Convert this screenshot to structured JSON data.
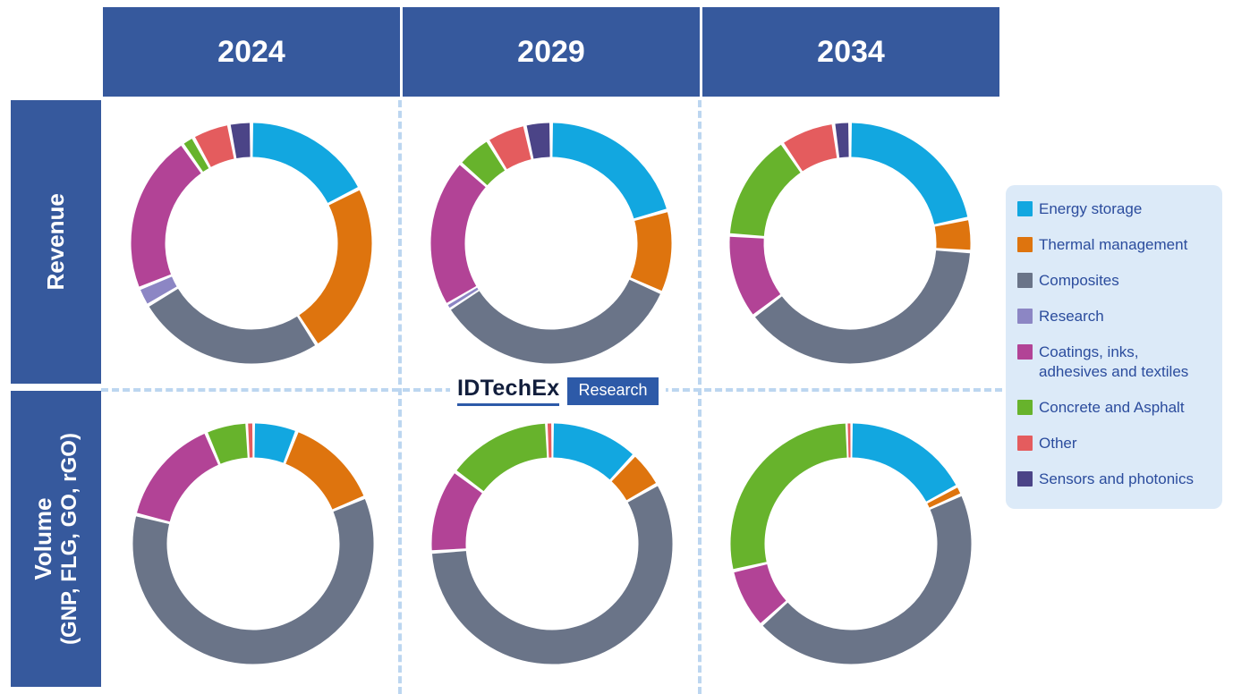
{
  "header": {
    "columns": [
      "2024",
      "2029",
      "2034"
    ]
  },
  "rows": [
    {
      "label": "Revenue"
    },
    {
      "label_line1": "Volume",
      "label_line2": "(GNP, FLG, GO, rGO)"
    }
  ],
  "logo": {
    "brand": "IDTechEx",
    "badge": "Research"
  },
  "legend": {
    "position": "right",
    "items": [
      {
        "label": "Energy storage",
        "color": "#12A7E0"
      },
      {
        "label": "Thermal management",
        "color": "#DE740E"
      },
      {
        "label": "Composites",
        "color": "#6A7488"
      },
      {
        "label": "Research",
        "color": "#8C86C4"
      },
      {
        "label": "Coatings, inks,\nadhesives and textiles",
        "color": "#B24396"
      },
      {
        "label": "Concrete and Asphalt",
        "color": "#67B32C"
      },
      {
        "label": "Other",
        "color": "#E45C5E"
      },
      {
        "label": "Sensors and photonics",
        "color": "#4B4487"
      }
    ]
  },
  "colors": {
    "header_blue": "#36599D",
    "legend_background": "#DCEAF8",
    "legend_text": "#2B4C9D",
    "dashed_line": "#BCD6F0",
    "logo_navy": "#121E3C",
    "logo_blue": "#2D5AA8"
  },
  "chart_data": [
    {
      "type": "pie",
      "subtype": "donut",
      "title": "Revenue 2024",
      "row": "Revenue",
      "year": "2024",
      "values_unit": "percent_of_ring_estimated",
      "start_angle": "top",
      "direction": "clockwise",
      "categories": [
        "Energy storage",
        "Thermal management",
        "Composites",
        "Research",
        "Coatings, inks, adhesives and textiles",
        "Concrete and Asphalt",
        "Other",
        "Sensors and photonics"
      ],
      "values": [
        17.5,
        23.4,
        25.5,
        2.5,
        21.4,
        1.7,
        5.0,
        3.0
      ]
    },
    {
      "type": "pie",
      "subtype": "donut",
      "title": "Revenue 2029",
      "row": "Revenue",
      "year": "2029",
      "values_unit": "percent_of_ring_estimated",
      "start_angle": "top",
      "direction": "clockwise",
      "categories": [
        "Energy storage",
        "Thermal management",
        "Composites",
        "Research",
        "Coatings, inks, adhesives and textiles",
        "Concrete and Asphalt",
        "Other",
        "Sensors and photonics"
      ],
      "values": [
        20.6,
        11.1,
        34.2,
        0.6,
        20.0,
        4.7,
        5.3,
        3.5
      ]
    },
    {
      "type": "pie",
      "subtype": "donut",
      "title": "Revenue 2034",
      "row": "Revenue",
      "year": "2034",
      "values_unit": "percent_of_ring_estimated",
      "start_angle": "top",
      "direction": "clockwise",
      "categories": [
        "Energy storage",
        "Thermal management",
        "Composites",
        "Research",
        "Coatings, inks, adhesives and textiles",
        "Concrete and Asphalt",
        "Other",
        "Sensors and photonics"
      ],
      "values": [
        21.7,
        4.4,
        38.6,
        0,
        11.4,
        14.4,
        7.3,
        2.2
      ]
    },
    {
      "type": "pie",
      "subtype": "donut",
      "title": "Volume 2024",
      "row": "Volume (GNP, FLG, GO, rGO)",
      "year": "2024",
      "values_unit": "percent_of_ring_estimated",
      "start_angle": "top",
      "direction": "clockwise",
      "categories": [
        "Energy storage",
        "Thermal management",
        "Composites",
        "Research",
        "Coatings, inks, adhesives and textiles",
        "Concrete and Asphalt",
        "Other",
        "Sensors and photonics"
      ],
      "values": [
        5.9,
        12.8,
        60.2,
        0,
        14.7,
        5.6,
        0.8,
        0
      ]
    },
    {
      "type": "pie",
      "subtype": "donut",
      "title": "Volume 2029",
      "row": "Volume (GNP, FLG, GO, rGO)",
      "year": "2029",
      "values_unit": "percent_of_ring_estimated",
      "start_angle": "top",
      "direction": "clockwise",
      "categories": [
        "Energy storage",
        "Thermal management",
        "Composites",
        "Research",
        "Coatings, inks, adhesives and textiles",
        "Concrete and Asphalt",
        "Other",
        "Sensors and photonics"
      ],
      "values": [
        11.9,
        4.9,
        57.1,
        0,
        11.3,
        14.1,
        0.7,
        0
      ]
    },
    {
      "type": "pie",
      "subtype": "donut",
      "title": "Volume 2034",
      "row": "Volume (GNP, FLG, GO, rGO)",
      "year": "2034",
      "values_unit": "percent_of_ring_estimated",
      "start_angle": "top",
      "direction": "clockwise",
      "categories": [
        "Energy storage",
        "Thermal management",
        "Composites",
        "Research",
        "Coatings, inks, adhesives and textiles",
        "Concrete and Asphalt",
        "Other",
        "Sensors and photonics"
      ],
      "values": [
        17.1,
        1.2,
        45.0,
        0,
        8.1,
        28.1,
        0.5,
        0
      ]
    }
  ]
}
